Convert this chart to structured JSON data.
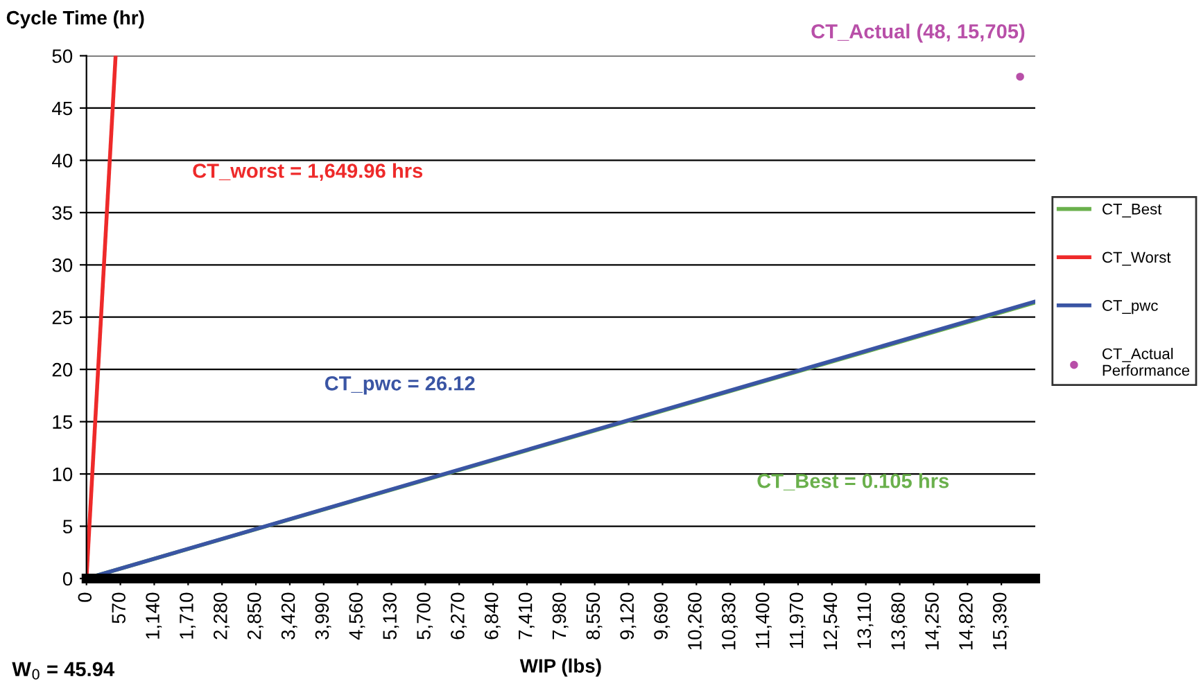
{
  "chart_data": {
    "type": "line",
    "ylabel": "Cycle Time (hr)",
    "xlabel": "WIP (lbs)",
    "xlim": [
      0,
      15960
    ],
    "xticks": [
      0,
      570,
      {
        "value": 1140,
        "label": "1,140"
      },
      {
        "value": 1710,
        "label": "1,710"
      },
      {
        "value": 2280,
        "label": "2,280"
      },
      {
        "value": 2850,
        "label": "2,850"
      },
      {
        "value": 3420,
        "label": "3,420"
      },
      {
        "value": 3990,
        "label": "3,990"
      },
      {
        "value": 4560,
        "label": "4,560"
      },
      {
        "value": 5130,
        "label": "5,130"
      },
      {
        "value": 5700,
        "label": "5,700"
      },
      {
        "value": 6270,
        "label": "6,270"
      },
      {
        "value": 6840,
        "label": "6,840"
      },
      {
        "value": 7410,
        "label": "7,410"
      },
      {
        "value": 7980,
        "label": "7,980"
      },
      {
        "value": 8550,
        "label": "8,550"
      },
      {
        "value": 9120,
        "label": "9,120"
      },
      {
        "value": 9690,
        "label": "9,690"
      },
      {
        "value": 10260,
        "label": "10,260"
      },
      {
        "value": 10830,
        "label": "10,830"
      },
      {
        "value": 11400,
        "label": "11,400"
      },
      {
        "value": 11970,
        "label": "11,970"
      },
      {
        "value": 12540,
        "label": "12,540"
      },
      {
        "value": 13110,
        "label": "13,110"
      },
      {
        "value": 13680,
        "label": "13,680"
      },
      {
        "value": 14250,
        "label": "14,250"
      },
      {
        "value": 14820,
        "label": "14,820"
      },
      {
        "value": 15390,
        "label": "15,390"
      }
    ],
    "ylim": [
      0,
      50
    ],
    "yticks": [
      0,
      5,
      10,
      15,
      20,
      25,
      30,
      35,
      40,
      45,
      50
    ],
    "grid": "y",
    "legend": "right",
    "series": [
      {
        "name": "CT_Best",
        "color": "#6ab04c",
        "x": [
          0,
          15960
        ],
        "values": [
          0,
          26.4
        ]
      },
      {
        "name": "CT_Worst",
        "color": "#ee2a2a",
        "x": [
          0,
          490
        ],
        "values": [
          0,
          50
        ]
      },
      {
        "name": "CT_pwc",
        "color": "#3a55a4",
        "x": [
          0,
          15960
        ],
        "values": [
          0,
          26.5
        ]
      },
      {
        "name": "CT_Actual Performance",
        "type": "scatter",
        "marker": "circle",
        "color": "#b84fa8",
        "x": [
          15705
        ],
        "values": [
          48
        ]
      }
    ],
    "annotations": [
      "CT_worst = 1,649.96 hrs",
      "CT_pwc = 26.12",
      "CT_Best = 0.105 hrs",
      "CT_Actual (48, 15,705)",
      "W$_{0}$ = 45.94"
    ]
  }
}
